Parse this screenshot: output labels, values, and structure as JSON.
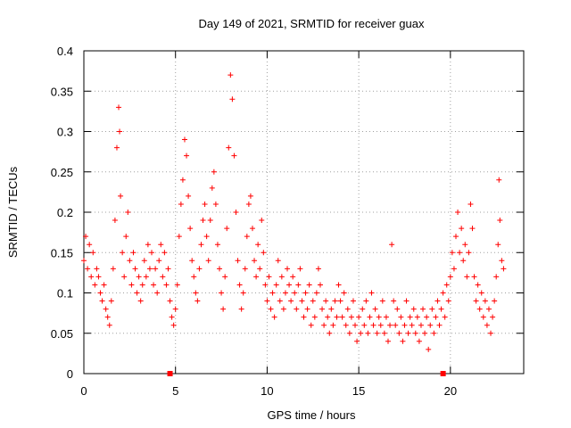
{
  "chart_data": {
    "type": "scatter",
    "title": "Day 149 of 2021, SRMTID for receiver guax",
    "xlabel": "GPS time / hours",
    "ylabel": "SRMTID / TECUs",
    "xlim": [
      0,
      24
    ],
    "ylim": [
      0,
      0.4
    ],
    "x_ticks": [
      0,
      5,
      10,
      15,
      20
    ],
    "x_tick_labels": [
      "0",
      "5",
      "10",
      "15",
      "20"
    ],
    "y_ticks": [
      0,
      0.05,
      0.1,
      0.15,
      0.2,
      0.25,
      0.3,
      0.35,
      0.4
    ],
    "y_tick_labels": [
      "0",
      "0.05",
      "0.1",
      "0.15",
      "0.2",
      "0.25",
      "0.3",
      "0.35",
      "0.4"
    ],
    "grid": true,
    "marker": "+",
    "color": "#ff0000",
    "axis_markers_x": [
      4.7,
      19.6
    ],
    "series": [
      {
        "name": "SRMTID",
        "points": [
          [
            0.0,
            0.14
          ],
          [
            0.1,
            0.17
          ],
          [
            0.2,
            0.13
          ],
          [
            0.3,
            0.16
          ],
          [
            0.4,
            0.12
          ],
          [
            0.5,
            0.15
          ],
          [
            0.6,
            0.11
          ],
          [
            0.7,
            0.13
          ],
          [
            0.8,
            0.12
          ],
          [
            0.9,
            0.1
          ],
          [
            1.0,
            0.09
          ],
          [
            1.1,
            0.11
          ],
          [
            1.2,
            0.08
          ],
          [
            1.3,
            0.07
          ],
          [
            1.4,
            0.06
          ],
          [
            1.5,
            0.09
          ],
          [
            1.6,
            0.13
          ],
          [
            1.7,
            0.19
          ],
          [
            1.8,
            0.28
          ],
          [
            1.9,
            0.33
          ],
          [
            1.95,
            0.3
          ],
          [
            2.0,
            0.22
          ],
          [
            2.1,
            0.15
          ],
          [
            2.2,
            0.12
          ],
          [
            2.3,
            0.17
          ],
          [
            2.4,
            0.2
          ],
          [
            2.5,
            0.14
          ],
          [
            2.6,
            0.11
          ],
          [
            2.7,
            0.15
          ],
          [
            2.8,
            0.13
          ],
          [
            2.9,
            0.1
          ],
          [
            3.0,
            0.12
          ],
          [
            3.1,
            0.09
          ],
          [
            3.2,
            0.11
          ],
          [
            3.3,
            0.14
          ],
          [
            3.4,
            0.12
          ],
          [
            3.5,
            0.16
          ],
          [
            3.6,
            0.13
          ],
          [
            3.7,
            0.15
          ],
          [
            3.8,
            0.11
          ],
          [
            3.9,
            0.13
          ],
          [
            4.0,
            0.1
          ],
          [
            4.1,
            0.14
          ],
          [
            4.2,
            0.16
          ],
          [
            4.3,
            0.12
          ],
          [
            4.4,
            0.15
          ],
          [
            4.5,
            0.11
          ],
          [
            4.6,
            0.13
          ],
          [
            4.7,
            0.09
          ],
          [
            4.8,
            0.07
          ],
          [
            4.9,
            0.06
          ],
          [
            5.0,
            0.08
          ],
          [
            5.1,
            0.11
          ],
          [
            5.2,
            0.17
          ],
          [
            5.3,
            0.21
          ],
          [
            5.4,
            0.24
          ],
          [
            5.5,
            0.29
          ],
          [
            5.6,
            0.27
          ],
          [
            5.7,
            0.22
          ],
          [
            5.8,
            0.18
          ],
          [
            5.9,
            0.14
          ],
          [
            6.0,
            0.12
          ],
          [
            6.1,
            0.1
          ],
          [
            6.2,
            0.09
          ],
          [
            6.3,
            0.13
          ],
          [
            6.4,
            0.16
          ],
          [
            6.5,
            0.19
          ],
          [
            6.6,
            0.21
          ],
          [
            6.7,
            0.17
          ],
          [
            6.8,
            0.14
          ],
          [
            6.9,
            0.19
          ],
          [
            7.0,
            0.23
          ],
          [
            7.1,
            0.25
          ],
          [
            7.2,
            0.21
          ],
          [
            7.3,
            0.16
          ],
          [
            7.4,
            0.13
          ],
          [
            7.5,
            0.1
          ],
          [
            7.6,
            0.08
          ],
          [
            7.7,
            0.12
          ],
          [
            7.8,
            0.18
          ],
          [
            7.9,
            0.28
          ],
          [
            8.0,
            0.37
          ],
          [
            8.1,
            0.34
          ],
          [
            8.2,
            0.27
          ],
          [
            8.3,
            0.2
          ],
          [
            8.4,
            0.14
          ],
          [
            8.5,
            0.11
          ],
          [
            8.6,
            0.08
          ],
          [
            8.7,
            0.1
          ],
          [
            8.8,
            0.13
          ],
          [
            8.9,
            0.17
          ],
          [
            9.0,
            0.21
          ],
          [
            9.1,
            0.22
          ],
          [
            9.2,
            0.18
          ],
          [
            9.3,
            0.14
          ],
          [
            9.4,
            0.12
          ],
          [
            9.5,
            0.16
          ],
          [
            9.6,
            0.13
          ],
          [
            9.7,
            0.19
          ],
          [
            9.8,
            0.15
          ],
          [
            9.9,
            0.11
          ],
          [
            10.0,
            0.09
          ],
          [
            10.1,
            0.12
          ],
          [
            10.2,
            0.08
          ],
          [
            10.3,
            0.1
          ],
          [
            10.4,
            0.07
          ],
          [
            10.5,
            0.11
          ],
          [
            10.6,
            0.14
          ],
          [
            10.7,
            0.09
          ],
          [
            10.8,
            0.12
          ],
          [
            10.9,
            0.08
          ],
          [
            11.0,
            0.1
          ],
          [
            11.1,
            0.13
          ],
          [
            11.2,
            0.11
          ],
          [
            11.3,
            0.09
          ],
          [
            11.4,
            0.12
          ],
          [
            11.5,
            0.1
          ],
          [
            11.6,
            0.08
          ],
          [
            11.7,
            0.11
          ],
          [
            11.8,
            0.13
          ],
          [
            11.9,
            0.09
          ],
          [
            12.0,
            0.07
          ],
          [
            12.1,
            0.1
          ],
          [
            12.2,
            0.08
          ],
          [
            12.3,
            0.11
          ],
          [
            12.4,
            0.06
          ],
          [
            12.5,
            0.09
          ],
          [
            12.6,
            0.07
          ],
          [
            12.7,
            0.1
          ],
          [
            12.8,
            0.13
          ],
          [
            12.9,
            0.11
          ],
          [
            13.0,
            0.08
          ],
          [
            13.1,
            0.06
          ],
          [
            13.2,
            0.09
          ],
          [
            13.3,
            0.07
          ],
          [
            13.4,
            0.05
          ],
          [
            13.5,
            0.08
          ],
          [
            13.6,
            0.06
          ],
          [
            13.7,
            0.09
          ],
          [
            13.8,
            0.07
          ],
          [
            13.9,
            0.11
          ],
          [
            14.0,
            0.09
          ],
          [
            14.1,
            0.07
          ],
          [
            14.2,
            0.1
          ],
          [
            14.3,
            0.06
          ],
          [
            14.4,
            0.08
          ],
          [
            14.5,
            0.05
          ],
          [
            14.6,
            0.07
          ],
          [
            14.7,
            0.09
          ],
          [
            14.8,
            0.06
          ],
          [
            14.9,
            0.04
          ],
          [
            15.0,
            0.07
          ],
          [
            15.1,
            0.05
          ],
          [
            15.2,
            0.08
          ],
          [
            15.3,
            0.06
          ],
          [
            15.4,
            0.09
          ],
          [
            15.5,
            0.05
          ],
          [
            15.6,
            0.07
          ],
          [
            15.7,
            0.1
          ],
          [
            15.8,
            0.06
          ],
          [
            15.9,
            0.08
          ],
          [
            16.0,
            0.05
          ],
          [
            16.1,
            0.07
          ],
          [
            16.2,
            0.06
          ],
          [
            16.3,
            0.09
          ],
          [
            16.4,
            0.05
          ],
          [
            16.5,
            0.07
          ],
          [
            16.6,
            0.04
          ],
          [
            16.7,
            0.06
          ],
          [
            16.8,
            0.16
          ],
          [
            16.9,
            0.09
          ],
          [
            17.0,
            0.06
          ],
          [
            17.1,
            0.08
          ],
          [
            17.2,
            0.05
          ],
          [
            17.3,
            0.07
          ],
          [
            17.4,
            0.04
          ],
          [
            17.5,
            0.06
          ],
          [
            17.6,
            0.09
          ],
          [
            17.7,
            0.05
          ],
          [
            17.8,
            0.07
          ],
          [
            17.9,
            0.06
          ],
          [
            18.0,
            0.08
          ],
          [
            18.1,
            0.05
          ],
          [
            18.2,
            0.07
          ],
          [
            18.3,
            0.04
          ],
          [
            18.4,
            0.06
          ],
          [
            18.5,
            0.08
          ],
          [
            18.6,
            0.05
          ],
          [
            18.7,
            0.07
          ],
          [
            18.8,
            0.03
          ],
          [
            18.9,
            0.06
          ],
          [
            19.0,
            0.08
          ],
          [
            19.1,
            0.05
          ],
          [
            19.2,
            0.07
          ],
          [
            19.3,
            0.09
          ],
          [
            19.4,
            0.06
          ],
          [
            19.5,
            0.08
          ],
          [
            19.6,
            0.1
          ],
          [
            19.7,
            0.07
          ],
          [
            19.8,
            0.11
          ],
          [
            19.9,
            0.09
          ],
          [
            20.0,
            0.12
          ],
          [
            20.1,
            0.15
          ],
          [
            20.2,
            0.13
          ],
          [
            20.3,
            0.17
          ],
          [
            20.4,
            0.2
          ],
          [
            20.5,
            0.15
          ],
          [
            20.6,
            0.18
          ],
          [
            20.7,
            0.14
          ],
          [
            20.8,
            0.16
          ],
          [
            20.9,
            0.12
          ],
          [
            21.0,
            0.15
          ],
          [
            21.1,
            0.21
          ],
          [
            21.2,
            0.18
          ],
          [
            21.3,
            0.12
          ],
          [
            21.4,
            0.09
          ],
          [
            21.5,
            0.11
          ],
          [
            21.6,
            0.08
          ],
          [
            21.7,
            0.1
          ],
          [
            21.8,
            0.07
          ],
          [
            21.9,
            0.09
          ],
          [
            22.0,
            0.06
          ],
          [
            22.1,
            0.08
          ],
          [
            22.2,
            0.05
          ],
          [
            22.3,
            0.07
          ],
          [
            22.4,
            0.09
          ],
          [
            22.5,
            0.12
          ],
          [
            22.6,
            0.16
          ],
          [
            22.65,
            0.24
          ],
          [
            22.7,
            0.19
          ],
          [
            22.8,
            0.14
          ],
          [
            22.9,
            0.13
          ]
        ]
      }
    ]
  }
}
